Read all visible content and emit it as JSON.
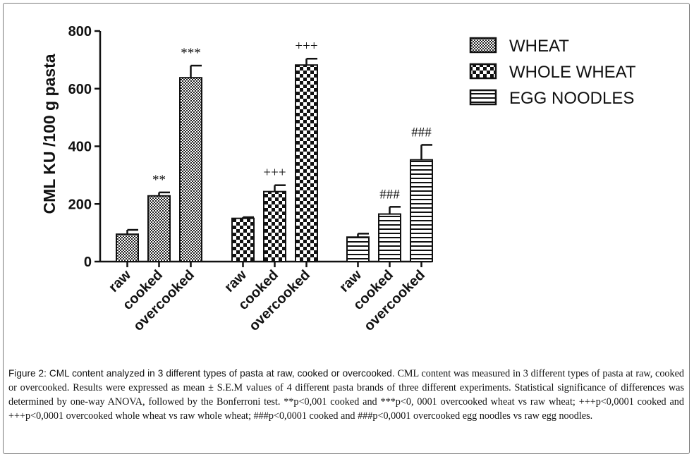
{
  "chart_data": {
    "type": "bar",
    "ylabel": "CML KU /100 g pasta",
    "ylim": [
      0,
      800
    ],
    "yticks": [
      0,
      200,
      400,
      600,
      800
    ],
    "categories": [
      "raw",
      "cooked",
      "overcooked"
    ],
    "grid": false,
    "legend_position": "top-right",
    "series": [
      {
        "name": "WHEAT",
        "pattern": "fine-check",
        "values": [
          95,
          228,
          638
        ],
        "errors": [
          15,
          12,
          42
        ],
        "annotations": [
          "",
          "**",
          "***"
        ]
      },
      {
        "name": "WHOLE WHEAT",
        "pattern": "coarse-check",
        "values": [
          150,
          243,
          682
        ],
        "errors": [
          4,
          22,
          22
        ],
        "annotations": [
          "",
          "+++",
          "+++"
        ]
      },
      {
        "name": "EGG NOODLES",
        "pattern": "horizontal-stripes",
        "values": [
          85,
          165,
          353
        ],
        "errors": [
          12,
          25,
          52
        ],
        "annotations": [
          "",
          "###",
          "###"
        ]
      }
    ]
  },
  "caption": {
    "title": "Figure 2: CML content analyzed in 3 different types of pasta at raw, cooked or overcooked.",
    "body": " CML content was measured in 3 different types of pasta at raw, cooked or overcooked. Results were expressed as mean ± S.E.M values of 4 different pasta brands of three different experiments. Statistical significance of differences was determined by one-way ANOVA, followed by the Bonferroni test. **p<0,001 cooked and ***p<0, 0001 overcooked wheat vs raw wheat; +++p<0,0001 cooked and +++p<0,0001 overcooked whole wheat vs raw whole wheat; ###p<0,0001 cooked and ###p<0,0001 overcooked egg noodles vs raw egg noodles."
  }
}
